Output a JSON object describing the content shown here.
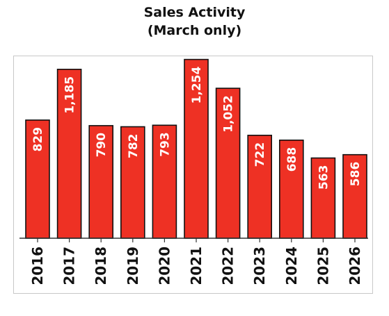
{
  "chart_data": {
    "type": "bar",
    "title": "Sales Activity",
    "subtitle": "(March only)",
    "categories": [
      "2016",
      "2017",
      "2018",
      "2019",
      "2020",
      "2021",
      "2022",
      "2023",
      "2024",
      "2025",
      "2026"
    ],
    "values": [
      829,
      1185,
      790,
      782,
      793,
      1254,
      1052,
      722,
      688,
      563,
      586
    ],
    "value_labels": [
      "829",
      "1,185",
      "790",
      "782",
      "793",
      "1,254",
      "1,052",
      "722",
      "688",
      "563",
      "586"
    ],
    "xlabel": "",
    "ylabel": "",
    "ylim": [
      0,
      1340
    ],
    "grid": false,
    "legend": "none",
    "colors": {
      "bar": "#ee3124",
      "bar_outline": "#111111",
      "label_text": "#ffffff",
      "tick_text": "#111111"
    }
  }
}
